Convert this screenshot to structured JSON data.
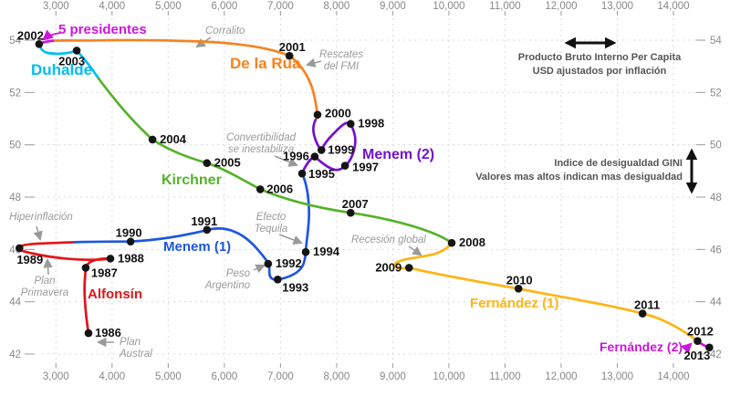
{
  "chart_data": {
    "type": "line",
    "subtype": "connected-scatter",
    "title": "",
    "xlabel": "Producto Bruto Interno Per Capita (USD ajustados por inflación)",
    "ylabel": "Indice de desigualdad GINI",
    "xlim": [
      2000,
      15000
    ],
    "ylim": [
      42,
      54
    ],
    "grid": "dashed",
    "axes": {
      "x": {
        "title_line1": "Producto Bruto Interno Per Capita",
        "title_line2": "USD ajustados por inflación",
        "ticks": [
          {
            "v": 3000,
            "label": "3,000"
          },
          {
            "v": 4000,
            "label": "4,000"
          },
          {
            "v": 5000,
            "label": "5,000"
          },
          {
            "v": 6000,
            "label": "6,000"
          },
          {
            "v": 7000,
            "label": "7,000"
          },
          {
            "v": 8000,
            "label": "8,000"
          },
          {
            "v": 9000,
            "label": "9,000"
          },
          {
            "v": 10000,
            "label": "10,000"
          },
          {
            "v": 11000,
            "label": "11,000"
          },
          {
            "v": 12000,
            "label": "12,000"
          },
          {
            "v": 13000,
            "label": "13,000"
          },
          {
            "v": 14000,
            "label": "14,000"
          }
        ]
      },
      "y": {
        "title_line1": "Indice de desigualdad GINI",
        "title_line2": "Valores mas altos indican mas desigualdad",
        "ticks": [
          {
            "v": 42,
            "label": "42"
          },
          {
            "v": 44,
            "label": "44"
          },
          {
            "v": 46,
            "label": "46"
          },
          {
            "v": 48,
            "label": "48"
          },
          {
            "v": 50,
            "label": "50"
          },
          {
            "v": 52,
            "label": "52"
          },
          {
            "v": 54,
            "label": "54"
          }
        ]
      }
    },
    "series": [
      {
        "name": "Alfonsín",
        "color": "#e41319",
        "points": [
          {
            "year": 1986,
            "gdp": 3580,
            "gini": 42.8
          },
          {
            "year": 1987,
            "gdp": 3530,
            "gini": 45.3
          },
          {
            "year": 1988,
            "gdp": 3970,
            "gini": 45.65
          },
          {
            "year": 1989,
            "gdp": 2350,
            "gini": 46.05
          }
        ]
      },
      {
        "name": "Menem (1)",
        "color": "#1e56e0",
        "points": [
          {
            "year": 1990,
            "gdp": 4330,
            "gini": 46.3
          },
          {
            "year": 1991,
            "gdp": 5690,
            "gini": 46.75
          },
          {
            "year": 1992,
            "gdp": 6780,
            "gini": 45.45
          },
          {
            "year": 1993,
            "gdp": 6950,
            "gini": 44.85
          },
          {
            "year": 1994,
            "gdp": 7450,
            "gini": 45.9
          }
        ]
      },
      {
        "name": "Menem (2)",
        "color": "#7412cd",
        "points": [
          {
            "year": 1995,
            "gdp": 7385,
            "gini": 48.9
          },
          {
            "year": 1996,
            "gdp": 7610,
            "gini": 49.55
          },
          {
            "year": 1997,
            "gdp": 8150,
            "gini": 49.2
          },
          {
            "year": 1998,
            "gdp": 8250,
            "gini": 50.8
          },
          {
            "year": 1999,
            "gdp": 7730,
            "gini": 49.8
          }
        ]
      },
      {
        "name": "De la Rúa",
        "color": "#f6821f",
        "points": [
          {
            "year": 2000,
            "gdp": 7660,
            "gini": 51.15
          },
          {
            "year": 2001,
            "gdp": 7160,
            "gini": 53.4
          }
        ]
      },
      {
        "name": "5 presidentes",
        "color": "#cc14dd",
        "points": []
      },
      {
        "name": "Duhalde",
        "color": "#00bdf0",
        "points": [
          {
            "year": 2002,
            "gdp": 2700,
            "gini": 53.85
          },
          {
            "year": 2003,
            "gdp": 3370,
            "gini": 53.6
          }
        ]
      },
      {
        "name": "Kirchner",
        "color": "#55b22a",
        "points": [
          {
            "year": 2004,
            "gdp": 4720,
            "gini": 50.2
          },
          {
            "year": 2005,
            "gdp": 5690,
            "gini": 49.3
          },
          {
            "year": 2006,
            "gdp": 6640,
            "gini": 48.3
          },
          {
            "year": 2007,
            "gdp": 8250,
            "gini": 47.4
          }
        ]
      },
      {
        "name": "Fernández (1)",
        "color": "#fdb414",
        "points": [
          {
            "year": 2008,
            "gdp": 10050,
            "gini": 46.25
          },
          {
            "year": 2009,
            "gdp": 9290,
            "gini": 45.3
          },
          {
            "year": 2010,
            "gdp": 11240,
            "gini": 44.5
          },
          {
            "year": 2011,
            "gdp": 13450,
            "gini": 43.55
          }
        ]
      },
      {
        "name": "Fernández (2)",
        "color": "#cc14dd",
        "points": [
          {
            "year": 2012,
            "gdp": 14430,
            "gini": 42.5
          },
          {
            "year": 2013,
            "gdp": 14640,
            "gini": 42.25
          }
        ]
      }
    ],
    "annotations": [
      {
        "id": "hiperinflacion",
        "text": "Hiperinflación"
      },
      {
        "id": "plan_primavera",
        "text": "Plan\nPrimavera"
      },
      {
        "id": "plan_austral",
        "text": "Plan\nAustral"
      },
      {
        "id": "corralito",
        "text": "Corralito"
      },
      {
        "id": "rescates",
        "text": "Rescates\ndel FMI"
      },
      {
        "id": "convertibilidad",
        "text": "Convertibilidad\nse inestabiliza"
      },
      {
        "id": "efecto_tequila",
        "text": "Efecto\nTequila"
      },
      {
        "id": "peso_argentino",
        "text": "Peso\nArgentino"
      },
      {
        "id": "recesion_global",
        "text": "Recesión global"
      }
    ]
  }
}
